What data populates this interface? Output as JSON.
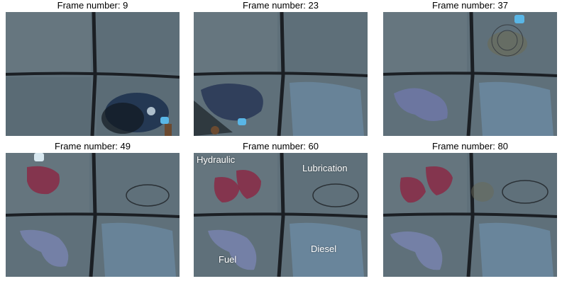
{
  "panels": [
    {
      "caption": "Frame number: 9"
    },
    {
      "caption": "Frame number: 23"
    },
    {
      "caption": "Frame number: 37"
    },
    {
      "caption": "Frame number: 49"
    },
    {
      "caption": "Frame number: 60",
      "labels": {
        "hydraulic": "Hydraulic",
        "lubrication": "Lubrication",
        "fuel": "Fuel",
        "diesel": "Diesel"
      }
    },
    {
      "caption": "Frame number: 80"
    }
  ],
  "colors": {
    "water": "#5b6c76",
    "water_dark": "#4a5a64",
    "divider": "#1b1f24",
    "hydraulic": "#8a2a45",
    "lubrication_outline": "#2a3035",
    "fuel": "#7b86b6",
    "diesel": "#6f93b0",
    "spill_dark": "#1e3350",
    "glove": "#59b6e6"
  }
}
